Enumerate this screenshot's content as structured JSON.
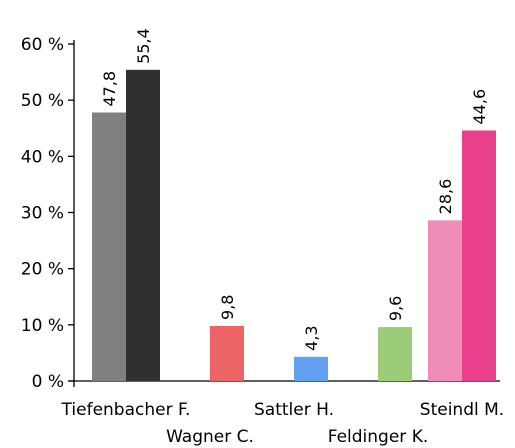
{
  "chart_data": {
    "type": "bar",
    "ylim": [
      0,
      60
    ],
    "yticks": [
      {
        "value": 0,
        "label": "0 %"
      },
      {
        "value": 10,
        "label": "10 %"
      },
      {
        "value": 20,
        "label": "20 %"
      },
      {
        "value": 30,
        "label": "30 %"
      },
      {
        "value": 40,
        "label": "40 %"
      },
      {
        "value": 50,
        "label": "50 %"
      },
      {
        "value": 60,
        "label": "60 %"
      }
    ],
    "categories": [
      {
        "name": "Tiefenbacher F.",
        "label_row": 1
      },
      {
        "name": "Wagner C.",
        "label_row": 2
      },
      {
        "name": "Sattler H.",
        "label_row": 1
      },
      {
        "name": "Feldinger K.",
        "label_row": 2
      },
      {
        "name": "Steindl M.",
        "label_row": 1
      }
    ],
    "bars": [
      {
        "category": "Tiefenbacher F.",
        "slot": 0,
        "value": 47.8,
        "label": "47,8",
        "color": "#808080"
      },
      {
        "category": "Tiefenbacher F.",
        "slot": 1,
        "value": 55.4,
        "label": "55,4",
        "color": "#303030"
      },
      {
        "category": "Wagner C.",
        "slot": 1,
        "value": 9.8,
        "label": "9,8",
        "color": "#ec6464"
      },
      {
        "category": "Sattler H.",
        "slot": 1,
        "value": 4.3,
        "label": "4,3",
        "color": "#64a0f0"
      },
      {
        "category": "Feldinger K.",
        "slot": 1,
        "value": 9.6,
        "label": "9,6",
        "color": "#9ccc78"
      },
      {
        "category": "Steindl M.",
        "slot": 0,
        "value": 28.6,
        "label": "28,6",
        "color": "#f08cb8"
      },
      {
        "category": "Steindl M.",
        "slot": 1,
        "value": 44.6,
        "label": "44,6",
        "color": "#e8408c"
      }
    ],
    "grid": false,
    "legend": "none"
  }
}
